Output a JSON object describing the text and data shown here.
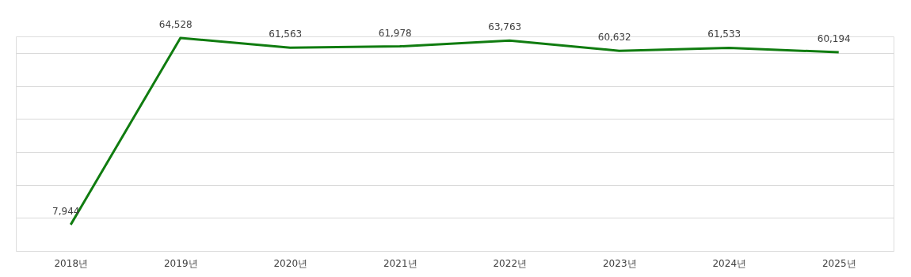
{
  "chart_data": {
    "type": "line",
    "categories": [
      "2018년",
      "2019년",
      "2020년",
      "2021년",
      "2022년",
      "2023년",
      "2024년",
      "2025년"
    ],
    "series": [
      {
        "color": "#107c10",
        "values": [
          7944,
          64528,
          61563,
          61978,
          63763,
          60632,
          61533,
          60194
        ],
        "value_labels": [
          "7,944",
          "64,528",
          "61,563",
          "61,978",
          "63,763",
          "60,632",
          "61,533",
          "60,194"
        ]
      }
    ],
    "tick_labels": "x",
    "grid": "y",
    "marker": "none",
    "line_style": "solid"
  }
}
